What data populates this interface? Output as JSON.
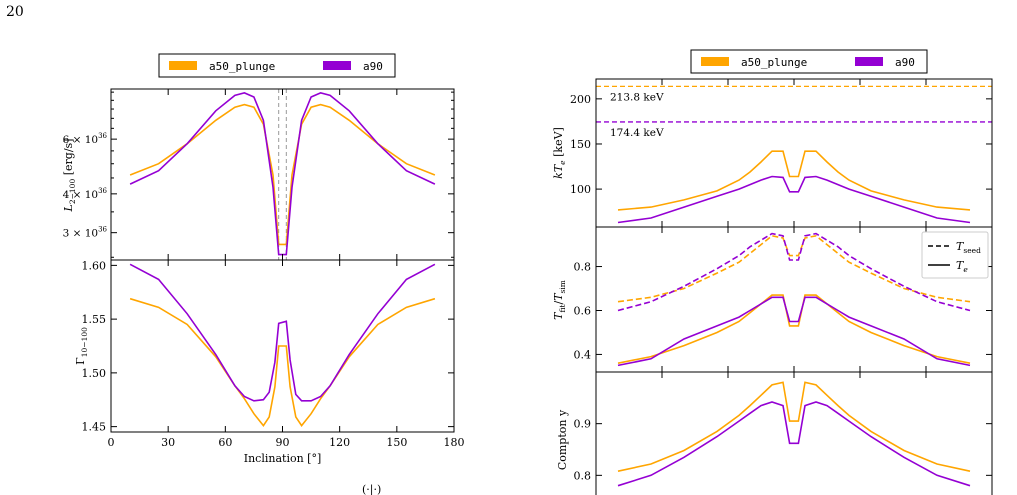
{
  "page_number": "20",
  "colors": {
    "a50_plunge": "#ffa500",
    "a90": "#9400d3",
    "guide": "#999999"
  },
  "chart_data": [
    {
      "type": "line",
      "ylabel": "L_{2-100} [erg/s]",
      "yscale": "log",
      "ylim": [
        2.45e+36,
        8.7e+36
      ],
      "xlim": [
        0,
        180
      ],
      "yticks": [
        {
          "v": 3e+36,
          "mant": "3 × 10",
          "exp": "36"
        },
        {
          "v": 4e+36,
          "mant": "4 × 10",
          "exp": "36"
        },
        {
          "v": 6e+36,
          "mant": "6 × 10",
          "exp": "36"
        }
      ],
      "vlines": [
        88,
        92
      ],
      "legend": [
        "a50_plunge",
        "a90"
      ],
      "series": [
        {
          "name": "a50_plunge",
          "color": "#ffa500",
          "x": [
            10,
            25,
            40,
            55,
            65,
            70,
            75,
            80,
            85,
            88,
            92,
            95,
            100,
            105,
            110,
            115,
            125,
            140,
            155,
            170
          ],
          "y": [
            4.6e+36,
            5e+36,
            5.8e+36,
            6.9e+36,
            7.6e+36,
            7.75e+36,
            7.6e+36,
            6.7e+36,
            4.6e+36,
            2.75e+36,
            2.75e+36,
            4.6e+36,
            6.7e+36,
            7.6e+36,
            7.75e+36,
            7.6e+36,
            6.9e+36,
            5.8e+36,
            5e+36,
            4.6e+36
          ]
        },
        {
          "name": "a90",
          "color": "#9400d3",
          "x": [
            10,
            25,
            40,
            55,
            65,
            70,
            75,
            80,
            85,
            88,
            92,
            95,
            100,
            105,
            110,
            115,
            125,
            140,
            155,
            170
          ],
          "y": [
            4.3e+36,
            4.75e+36,
            5.8e+36,
            7.4e+36,
            8.3e+36,
            8.45e+36,
            8.2e+36,
            6.9e+36,
            4.2e+36,
            2.55e+36,
            2.55e+36,
            4.2e+36,
            6.9e+36,
            8.2e+36,
            8.45e+36,
            8.3e+36,
            7.4e+36,
            5.8e+36,
            4.75e+36,
            4.3e+36
          ]
        }
      ]
    },
    {
      "type": "line",
      "ylabel": "Γ_{10-100}",
      "xlabel": "Inclination [°]",
      "ylim": [
        1.445,
        1.605
      ],
      "xlim": [
        0,
        180
      ],
      "yticks": [
        1.45,
        1.5,
        1.55,
        1.6
      ],
      "ytick_labels": [
        "1.45",
        "1.50",
        "1.55",
        "1.60"
      ],
      "xticks": [
        0,
        30,
        60,
        90,
        120,
        150,
        180
      ],
      "xtick_labels": [
        "0",
        "30",
        "60",
        "90",
        "120",
        "150",
        "180"
      ],
      "series": [
        {
          "name": "a50_plunge",
          "color": "#ffa500",
          "x": [
            10,
            25,
            40,
            55,
            65,
            70,
            75,
            80,
            83,
            86,
            88,
            92,
            94,
            97,
            100,
            105,
            110,
            115,
            125,
            140,
            155,
            170
          ],
          "y": [
            1.569,
            1.561,
            1.545,
            1.515,
            1.488,
            1.476,
            1.462,
            1.451,
            1.459,
            1.487,
            1.525,
            1.525,
            1.487,
            1.459,
            1.451,
            1.462,
            1.476,
            1.488,
            1.515,
            1.545,
            1.561,
            1.569
          ]
        },
        {
          "name": "a90",
          "color": "#9400d3",
          "x": [
            10,
            25,
            40,
            55,
            65,
            70,
            75,
            80,
            83,
            86,
            88,
            92,
            94,
            97,
            100,
            105,
            110,
            115,
            125,
            140,
            155,
            170
          ],
          "y": [
            1.601,
            1.587,
            1.555,
            1.517,
            1.488,
            1.478,
            1.474,
            1.475,
            1.482,
            1.51,
            1.546,
            1.548,
            1.512,
            1.48,
            1.474,
            1.474,
            1.478,
            1.488,
            1.517,
            1.555,
            1.587,
            1.601
          ]
        }
      ]
    },
    {
      "type": "line",
      "ylabel": "kT_e [keV]",
      "ylim": [
        58,
        222
      ],
      "xlim": [
        0,
        180
      ],
      "yticks": [
        100,
        150,
        200
      ],
      "ytick_labels": [
        "100",
        "150",
        "200"
      ],
      "legend": [
        "a50_plunge",
        "a90"
      ],
      "hlines": [
        {
          "value": 213.8,
          "label": "213.8 keV",
          "color": "#ffa500"
        },
        {
          "value": 174.4,
          "label": "174.4 keV",
          "color": "#9400d3"
        }
      ],
      "series": [
        {
          "name": "a50_plunge",
          "color": "#ffa500",
          "x": [
            10,
            25,
            40,
            55,
            65,
            70,
            75,
            80,
            85,
            88,
            92,
            95,
            100,
            105,
            110,
            115,
            125,
            140,
            155,
            170
          ],
          "y": [
            77,
            80,
            88,
            98,
            110,
            119,
            130,
            142,
            142,
            114,
            114,
            142,
            142,
            130,
            119,
            110,
            98,
            88,
            80,
            77
          ]
        },
        {
          "name": "a90",
          "color": "#9400d3",
          "x": [
            10,
            25,
            40,
            55,
            65,
            70,
            75,
            80,
            85,
            88,
            92,
            95,
            100,
            105,
            110,
            115,
            125,
            140,
            155,
            170
          ],
          "y": [
            63,
            68,
            80,
            92,
            100,
            105,
            110,
            114,
            113,
            97,
            97,
            113,
            114,
            110,
            105,
            100,
            92,
            80,
            68,
            63
          ]
        }
      ]
    },
    {
      "type": "line",
      "ylabel": "T_fit/T_sim",
      "ylim": [
        0.32,
        0.98
      ],
      "xlim": [
        0,
        180
      ],
      "yticks": [
        0.4,
        0.6,
        0.8
      ],
      "ytick_labels": [
        "0.4",
        "0.6",
        "0.8"
      ],
      "legend": [
        "T_seed",
        "T_e"
      ],
      "series": [
        {
          "name": "a50_plunge T_seed",
          "color": "#ffa500",
          "dash": true,
          "x": [
            10,
            25,
            40,
            55,
            65,
            70,
            75,
            80,
            85,
            88,
            92,
            95,
            100,
            105,
            110,
            115,
            125,
            140,
            155,
            170
          ],
          "y": [
            0.64,
            0.66,
            0.7,
            0.77,
            0.82,
            0.86,
            0.9,
            0.94,
            0.93,
            0.85,
            0.85,
            0.93,
            0.94,
            0.9,
            0.86,
            0.82,
            0.77,
            0.7,
            0.66,
            0.64
          ]
        },
        {
          "name": "a90 T_seed",
          "color": "#9400d3",
          "dash": true,
          "x": [
            10,
            25,
            40,
            55,
            65,
            70,
            75,
            80,
            85,
            88,
            92,
            95,
            100,
            105,
            110,
            115,
            125,
            140,
            155,
            170
          ],
          "y": [
            0.6,
            0.64,
            0.71,
            0.79,
            0.85,
            0.89,
            0.92,
            0.95,
            0.94,
            0.83,
            0.83,
            0.94,
            0.95,
            0.92,
            0.89,
            0.85,
            0.79,
            0.71,
            0.64,
            0.6
          ]
        },
        {
          "name": "a50_plunge T_e",
          "color": "#ffa500",
          "dash": false,
          "x": [
            10,
            25,
            40,
            55,
            65,
            70,
            75,
            80,
            85,
            88,
            92,
            95,
            100,
            105,
            110,
            115,
            125,
            140,
            155,
            170
          ],
          "y": [
            0.36,
            0.39,
            0.44,
            0.5,
            0.55,
            0.59,
            0.63,
            0.67,
            0.67,
            0.53,
            0.53,
            0.67,
            0.67,
            0.63,
            0.59,
            0.55,
            0.5,
            0.44,
            0.39,
            0.36
          ]
        },
        {
          "name": "a90 T_e",
          "color": "#9400d3",
          "dash": false,
          "x": [
            10,
            25,
            40,
            55,
            65,
            70,
            75,
            80,
            85,
            88,
            92,
            95,
            100,
            105,
            110,
            115,
            125,
            140,
            155,
            170
          ],
          "y": [
            0.35,
            0.38,
            0.47,
            0.53,
            0.57,
            0.6,
            0.63,
            0.66,
            0.66,
            0.55,
            0.55,
            0.66,
            0.66,
            0.63,
            0.6,
            0.57,
            0.53,
            0.47,
            0.38,
            0.35
          ]
        }
      ]
    },
    {
      "type": "line",
      "ylabel": "Compton y",
      "ylim": [
        0.76,
        1.0
      ],
      "xlim": [
        0,
        180
      ],
      "yticks": [
        0.8,
        0.9
      ],
      "ytick_labels": [
        "0.8",
        "0.9"
      ],
      "series": [
        {
          "name": "a50_plunge",
          "color": "#ffa500",
          "x": [
            10,
            25,
            40,
            55,
            65,
            70,
            75,
            80,
            85,
            88,
            92,
            95,
            100,
            105,
            110,
            115,
            125,
            140,
            155,
            170
          ],
          "y": [
            0.808,
            0.822,
            0.848,
            0.885,
            0.916,
            0.935,
            0.955,
            0.975,
            0.98,
            0.905,
            0.905,
            0.98,
            0.975,
            0.955,
            0.935,
            0.916,
            0.885,
            0.848,
            0.822,
            0.808
          ]
        },
        {
          "name": "a90",
          "color": "#9400d3",
          "x": [
            10,
            25,
            40,
            55,
            65,
            70,
            75,
            80,
            85,
            88,
            92,
            95,
            100,
            105,
            110,
            115,
            125,
            140,
            155,
            170
          ],
          "y": [
            0.78,
            0.8,
            0.835,
            0.875,
            0.905,
            0.92,
            0.935,
            0.942,
            0.935,
            0.862,
            0.862,
            0.935,
            0.942,
            0.935,
            0.92,
            0.905,
            0.875,
            0.835,
            0.8,
            0.78
          ]
        }
      ]
    }
  ]
}
